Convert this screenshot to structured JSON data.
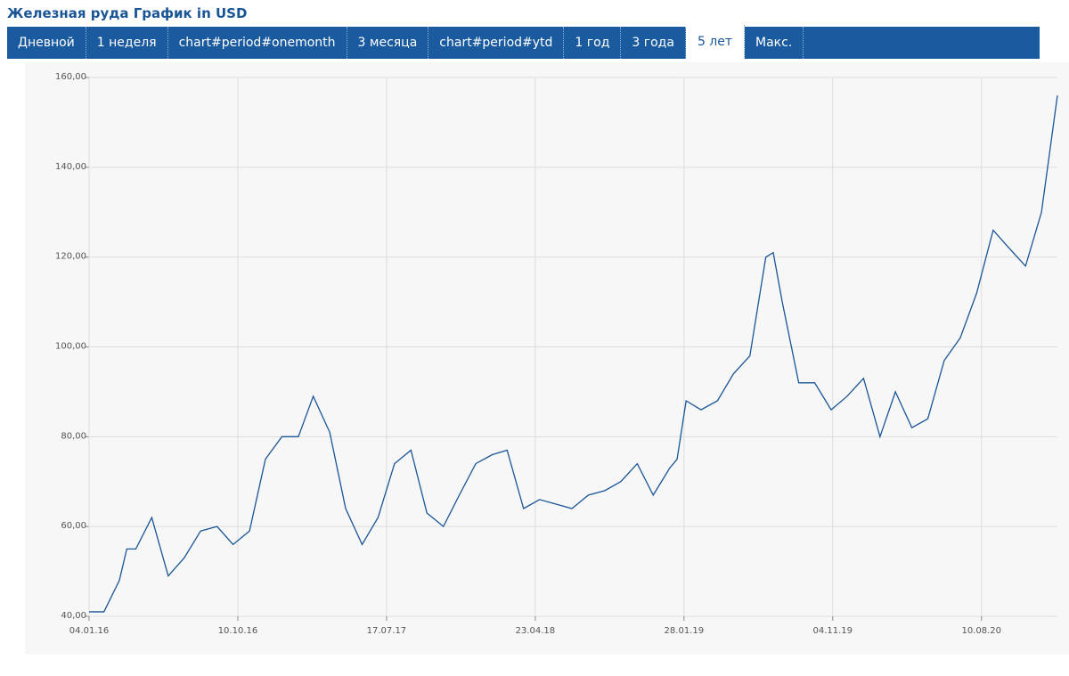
{
  "header": {
    "title": "Железная руда График in USD"
  },
  "tabs": [
    "Дневной",
    "1 неделя",
    "chart#period#onemonth",
    "3 месяца",
    "chart#period#ytd",
    "1 год",
    "3 года",
    "5 лет",
    "Макс."
  ],
  "chart_data": {
    "type": "line",
    "color": "#1a5596",
    "grid": true,
    "x": [
      "04.01.16",
      "01.02.16",
      "01.03.16",
      "15.03.16",
      "01.04.16",
      "01.05.16",
      "01.06.16",
      "01.07.16",
      "01.08.16",
      "01.09.16",
      "01.10.16",
      "01.11.16",
      "01.12.16",
      "01.01.17",
      "01.02.17",
      "01.03.17",
      "01.04.17",
      "01.05.17",
      "01.06.17",
      "01.07.17",
      "01.08.17",
      "01.09.17",
      "01.10.17",
      "01.11.17",
      "01.12.17",
      "01.01.18",
      "01.02.18",
      "01.03.18",
      "01.04.18",
      "01.05.18",
      "01.06.18",
      "01.07.18",
      "01.08.18",
      "01.09.18",
      "01.10.18",
      "01.11.18",
      "01.12.18",
      "01.01.19",
      "15.01.19",
      "01.02.19",
      "01.03.19",
      "01.04.19",
      "01.05.19",
      "01.06.19",
      "01.07.19",
      "15.07.19",
      "01.08.19",
      "01.09.19",
      "01.10.19",
      "01.11.19",
      "01.12.19",
      "01.01.20",
      "01.02.20",
      "01.03.20",
      "01.04.20",
      "01.05.20",
      "01.06.20",
      "01.07.20",
      "01.08.20",
      "01.09.20",
      "01.10.20",
      "01.11.20",
      "01.12.20",
      "31.12.20"
    ],
    "values": [
      41,
      41,
      48,
      55,
      55,
      62,
      49,
      53,
      59,
      60,
      56,
      59,
      75,
      80,
      80,
      89,
      81,
      64,
      56,
      62,
      74,
      77,
      63,
      60,
      67,
      74,
      76,
      77,
      64,
      66,
      65,
      64,
      67,
      68,
      70,
      74,
      67,
      73,
      75,
      88,
      86,
      88,
      94,
      98,
      120,
      121,
      110,
      92,
      92,
      86,
      89,
      93,
      80,
      90,
      82,
      84,
      97,
      102,
      112,
      126,
      122,
      118,
      130,
      156
    ],
    "xlim": [
      "04.01.16",
      "31.12.20"
    ],
    "xticks": [
      "04.01.16",
      "10.10.16",
      "17.07.17",
      "23.04.18",
      "28.01.19",
      "04.11.19",
      "10.08.20"
    ],
    "ylim": [
      40,
      160
    ],
    "yticks": [
      {
        "value": 40,
        "label": "40,00"
      },
      {
        "value": 60,
        "label": "60,00"
      },
      {
        "value": 80,
        "label": "80,00"
      },
      {
        "value": 100,
        "label": "100,00"
      },
      {
        "value": 120,
        "label": "120,00"
      },
      {
        "value": 140,
        "label": "140,00"
      },
      {
        "value": 160,
        "label": "160,00"
      }
    ]
  }
}
